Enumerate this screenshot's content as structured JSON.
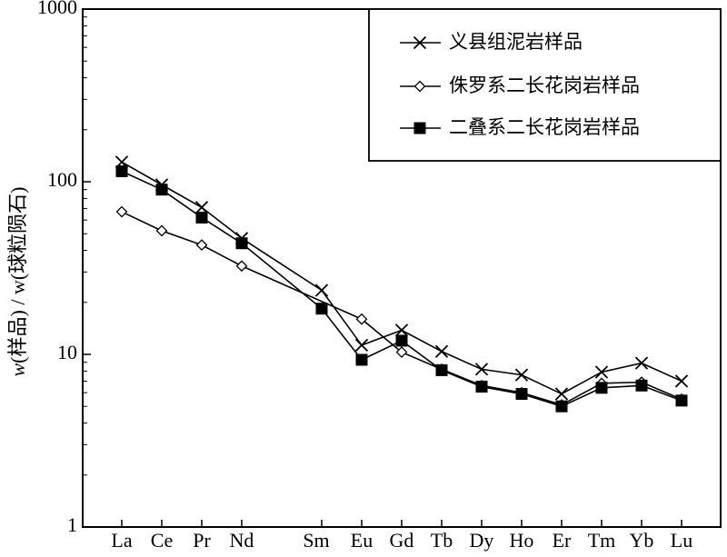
{
  "chart_data": {
    "type": "line",
    "title": "",
    "xlabel": "",
    "ylabel": "w(样品) / w(球粒陨石)",
    "yscale": "log",
    "ylim": [
      1,
      1000
    ],
    "y_ticks": [
      "1",
      "10",
      "100",
      "1000"
    ],
    "categories": [
      "La",
      "Ce",
      "Pr",
      "Nd",
      "Sm",
      "Eu",
      "Gd",
      "Tb",
      "Dy",
      "Ho",
      "Er",
      "Tm",
      "Yb",
      "Lu"
    ],
    "category_positions": [
      57,
      58,
      59,
      60,
      62,
      63,
      64,
      65,
      66,
      67,
      68,
      69,
      70,
      71
    ],
    "legend_position": "top-right",
    "grid": false,
    "series": [
      {
        "name": "义县组泥岩样品",
        "marker": "x",
        "color": "#000000",
        "values": [
          130,
          96,
          71,
          47,
          23.5,
          11.3,
          13.8,
          10.4,
          8.2,
          7.6,
          5.9,
          7.9,
          8.9,
          7.0
        ]
      },
      {
        "name": "侏罗系二长花岗岩样品",
        "marker": "diamond-open",
        "color": "#000000",
        "values": [
          67,
          52,
          43,
          32.5,
          null,
          16.0,
          10.3,
          8.2,
          6.6,
          6.0,
          5.1,
          6.8,
          6.9,
          5.5
        ]
      },
      {
        "name": "二叠系二长花岗岩样品",
        "marker": "square-filled",
        "color": "#000000",
        "values": [
          115,
          90,
          62,
          44,
          18.4,
          9.3,
          12.0,
          8.1,
          6.5,
          5.9,
          5.0,
          6.4,
          6.6,
          5.4
        ]
      }
    ]
  }
}
